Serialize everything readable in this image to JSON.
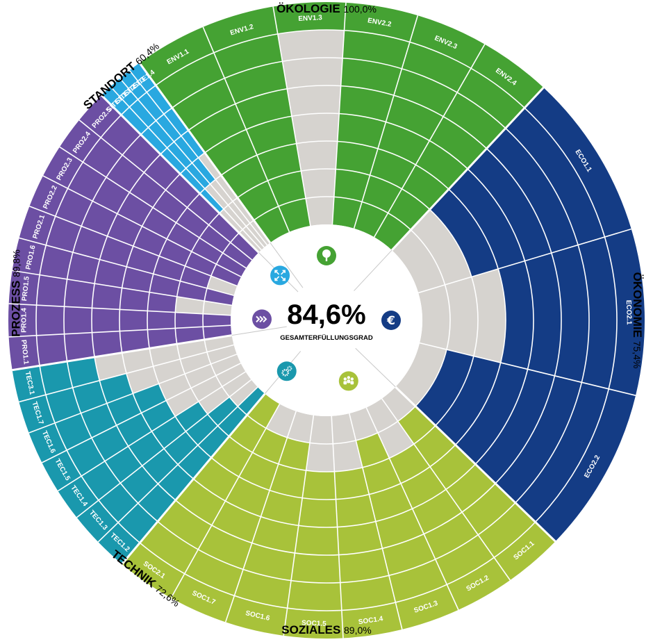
{
  "chart_data": {
    "type": "radial-bar",
    "center": {
      "value": "84,6%",
      "label": "GESAMTERFÜLLUNGSGRAD"
    },
    "rings": 8,
    "track_color": "#d6d3cf",
    "categories": [
      {
        "name": "ÖKOLOGIE",
        "score": "100,0%",
        "color": "#45a233",
        "icon": "tree-icon",
        "criteria": [
          {
            "name": "ENV1.1",
            "fulfilled_rings": 8
          },
          {
            "name": "ENV1.2",
            "fulfilled_rings": 8
          },
          {
            "name": "ENV1.3",
            "fulfilled_rings": 1
          },
          {
            "name": "ENV2.2",
            "fulfilled_rings": 8
          },
          {
            "name": "ENV2.3",
            "fulfilled_rings": 8
          },
          {
            "name": "ENV2.4",
            "fulfilled_rings": 8
          }
        ]
      },
      {
        "name": "ÖKONOMIE",
        "score": "75,4%",
        "color": "#143c85",
        "icon": "euro-icon",
        "criteria": [
          {
            "name": "ECO1.1",
            "fulfilled_rings": 6
          },
          {
            "name": "ECO2.1",
            "fulfilled_rings": 5
          },
          {
            "name": "ECO2.2",
            "fulfilled_rings": 7
          }
        ]
      },
      {
        "name": "SOZIALES",
        "score": "89,0%",
        "color": "#a8c23a",
        "icon": "people-icon",
        "criteria": [
          {
            "name": "SOC1.1",
            "fulfilled_rings": 7
          },
          {
            "name": "SOC1.2",
            "fulfilled_rings": 6
          },
          {
            "name": "SOC1.3",
            "fulfilled_rings": 7
          },
          {
            "name": "SOC1.4",
            "fulfilled_rings": 6
          },
          {
            "name": "SOC1.5",
            "fulfilled_rings": 6
          },
          {
            "name": "SOC1.6",
            "fulfilled_rings": 7
          },
          {
            "name": "SOC1.7",
            "fulfilled_rings": 7
          },
          {
            "name": "SOC2.1",
            "fulfilled_rings": 8
          }
        ]
      },
      {
        "name": "TECHNIK",
        "score": "72,6%",
        "color": "#1a98ad",
        "icon": "gear-icon",
        "criteria": [
          {
            "name": "TEC1.2",
            "fulfilled_rings": 8
          },
          {
            "name": "TEC1.3",
            "fulfilled_rings": 7
          },
          {
            "name": "TEC1.4",
            "fulfilled_rings": 6
          },
          {
            "name": "TEC1.5",
            "fulfilled_rings": 5
          },
          {
            "name": "TEC1.6",
            "fulfilled_rings": 5
          },
          {
            "name": "TEC1.7",
            "fulfilled_rings": 4
          },
          {
            "name": "TEC3.1",
            "fulfilled_rings": 3
          }
        ]
      },
      {
        "name": "PROZESS",
        "score": "89,8%",
        "color": "#6c4fa3",
        "icon": "chevrons-icon",
        "criteria": [
          {
            "name": "PRO1.1",
            "fulfilled_rings": 8
          },
          {
            "name": "PRO1.4",
            "fulfilled_rings": 8
          },
          {
            "name": "PRO1.5",
            "fulfilled_rings": 6
          },
          {
            "name": "PRO1.6",
            "fulfilled_rings": 8
          },
          {
            "name": "PRO2.1",
            "fulfilled_rings": 7
          },
          {
            "name": "PRO2.2",
            "fulfilled_rings": 8
          },
          {
            "name": "PRO2.3",
            "fulfilled_rings": 8
          },
          {
            "name": "PRO2.4",
            "fulfilled_rings": 8
          },
          {
            "name": "PRO2.5",
            "fulfilled_rings": 8
          }
        ]
      },
      {
        "name": "STANDORT",
        "score": "60,4%",
        "color": "#29a8e0",
        "icon": "arrows-icon",
        "criteria": [
          {
            "name": "SITE1.1",
            "fulfilled_rings": 6
          },
          {
            "name": "SITE1.2",
            "fulfilled_rings": 5
          },
          {
            "name": "SITE1.3",
            "fulfilled_rings": 5
          },
          {
            "name": "SITE1.4",
            "fulfilled_rings": 4
          }
        ]
      }
    ]
  }
}
